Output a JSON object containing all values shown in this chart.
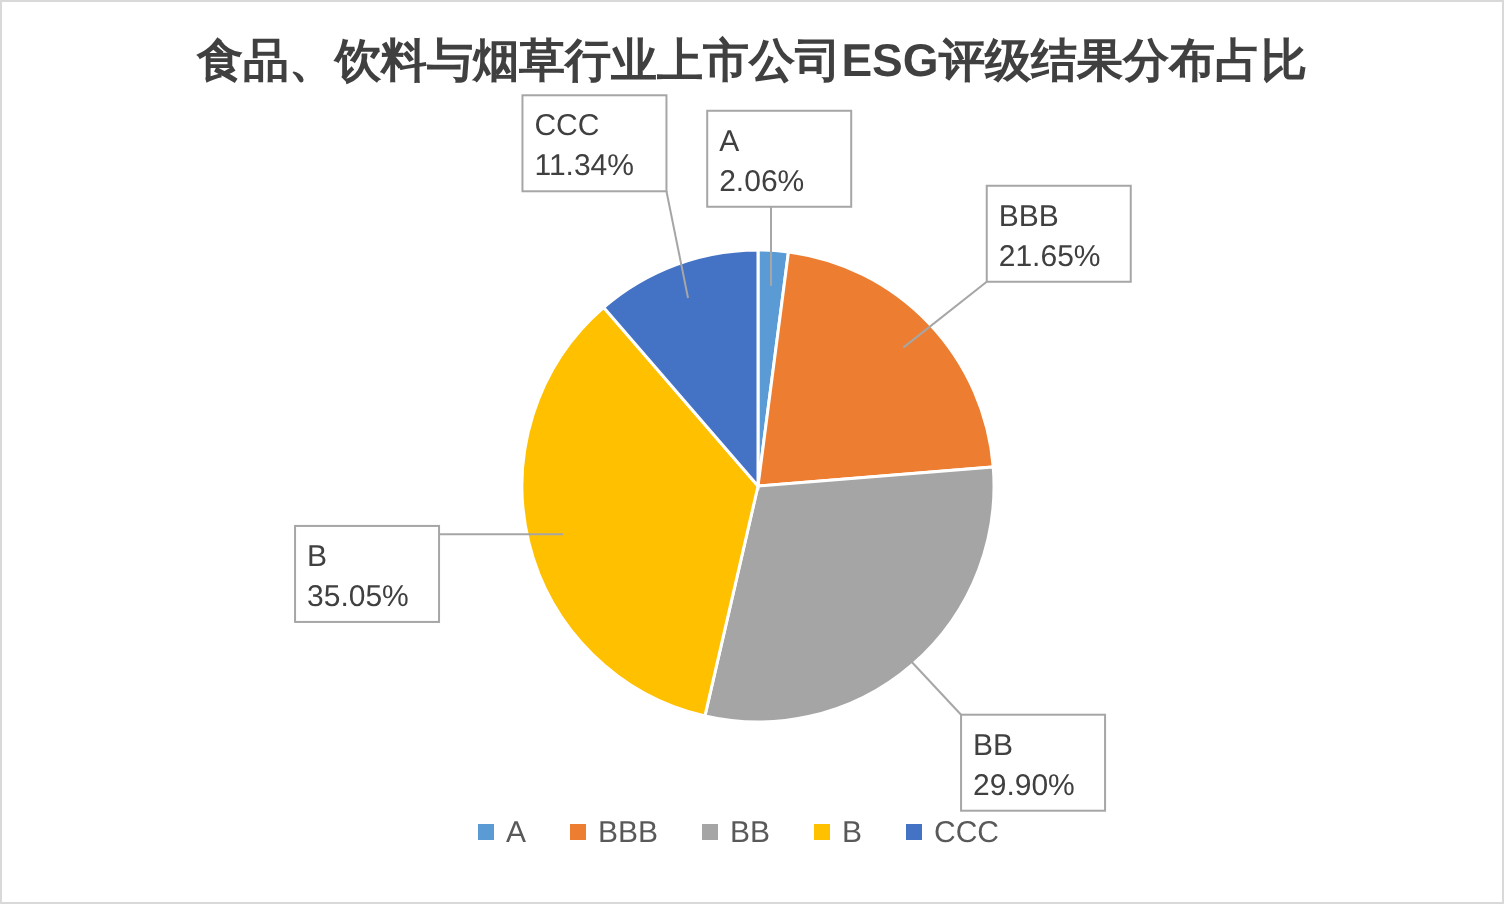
{
  "chart_data": {
    "type": "pie",
    "title": "食品、饮料与烟草行业上市公司ESG评级结果分布占比",
    "categories": [
      "A",
      "BBB",
      "BB",
      "B",
      "CCC"
    ],
    "values": [
      2.06,
      21.65,
      29.9,
      35.05,
      11.34
    ],
    "colors": [
      "#5b9bd5",
      "#ed7d31",
      "#a5a5a5",
      "#ffc000",
      "#4472c4"
    ],
    "value_labels": [
      "2.06%",
      "21.65%",
      "29.90%",
      "35.05%",
      "11.34%"
    ],
    "legend": "bottom"
  }
}
